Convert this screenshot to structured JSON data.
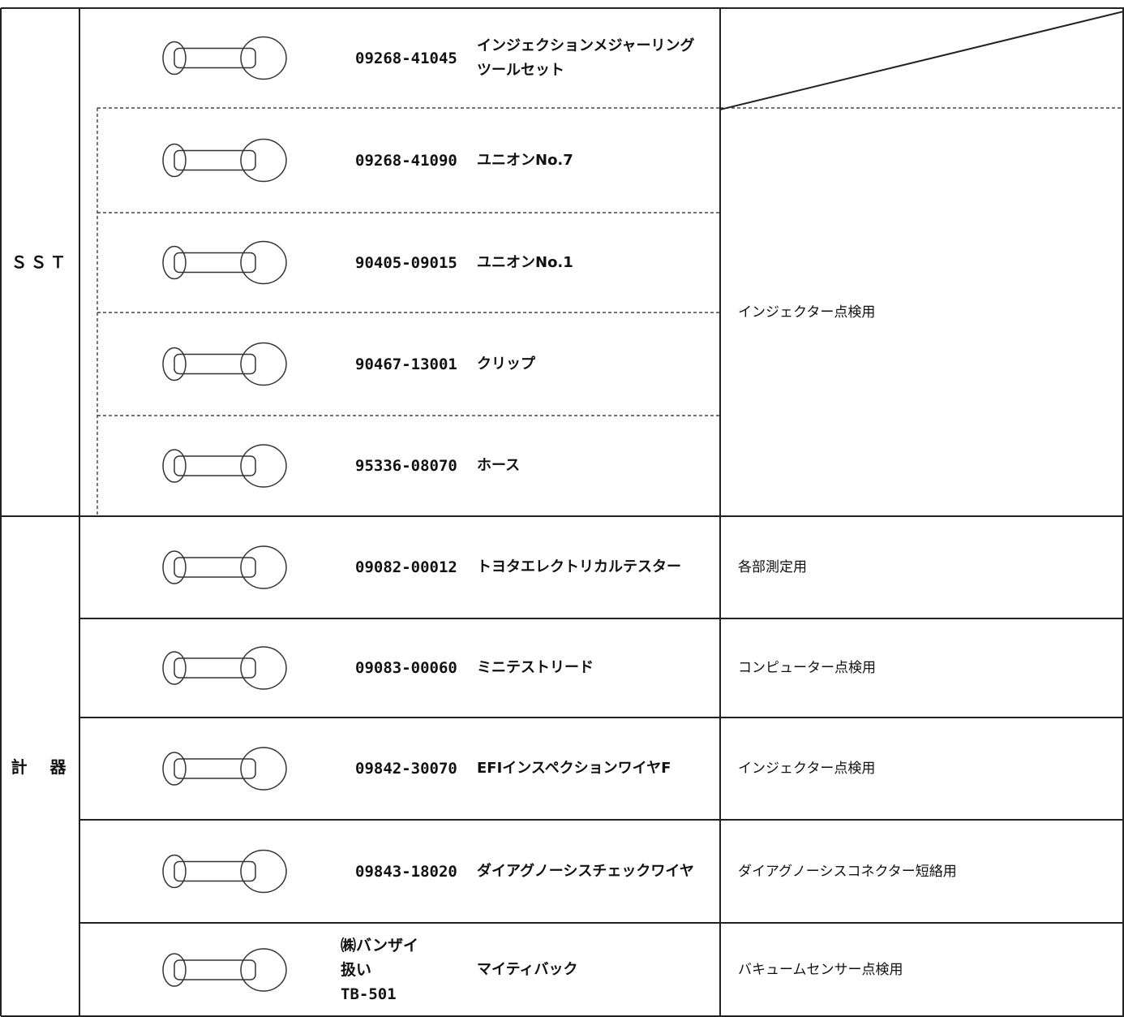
{
  "table": {
    "groups": [
      {
        "label": "ＳＳＴ",
        "usage": "インジェクター点検用",
        "rows": [
          {
            "part_number": "09268-41045",
            "name": "インジェクションメジャーリングツールセット"
          },
          {
            "part_number": "09268-41090",
            "name": "ユニオンNo.7"
          },
          {
            "part_number": "90405-09015",
            "name": "ユニオンNo.1"
          },
          {
            "part_number": "90467-13001",
            "name": "クリップ"
          },
          {
            "part_number": "95336-08070",
            "name": "ホース"
          }
        ]
      },
      {
        "label": "計　器",
        "rows": [
          {
            "part_number": "09082-00012",
            "name": "トヨタエレクトリカルテスター",
            "usage": "各部測定用"
          },
          {
            "part_number": "09083-00060",
            "name": "ミニテストリード",
            "usage": "コンピューター点検用"
          },
          {
            "part_number": "09842-30070",
            "name": "EFIインスペクションワイヤF",
            "usage": "インジェクター点検用"
          },
          {
            "part_number": "09843-18020",
            "name": "ダイアグノーシスチェックワイヤ",
            "usage": "ダイアグノーシスコネクター短絡用"
          },
          {
            "part_number_lines": [
              "㈱バンザイ",
              "扱い",
              "TB-501"
            ],
            "name": "マイティバック",
            "usage": "バキュームセンサー点検用"
          }
        ]
      }
    ]
  }
}
